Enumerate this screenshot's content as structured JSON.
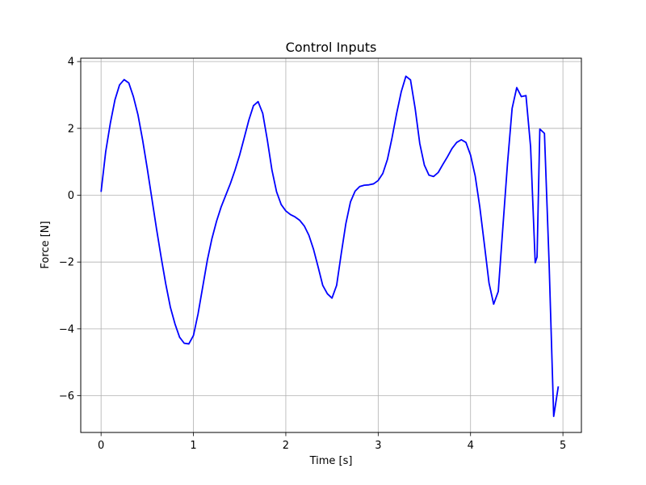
{
  "chart_data": {
    "type": "line",
    "title": "Control Inputs",
    "xlabel": "Time [s]",
    "ylabel": "Force [N]",
    "xlim": [
      -0.22,
      5.2
    ],
    "ylim": [
      -7.1,
      4.1
    ],
    "xticks": [
      0,
      1,
      2,
      3,
      4,
      5
    ],
    "xtick_labels": [
      "0",
      "1",
      "2",
      "3",
      "4",
      "5"
    ],
    "yticks": [
      -6,
      -4,
      -2,
      0,
      2,
      4
    ],
    "ytick_labels": [
      "−6",
      "−4",
      "−2",
      "0",
      "2",
      "4"
    ],
    "grid": true,
    "series": [
      {
        "color": "#0000ff",
        "x": [
          0.0,
          0.05,
          0.1,
          0.15,
          0.2,
          0.25,
          0.3,
          0.35,
          0.4,
          0.45,
          0.5,
          0.55,
          0.6,
          0.65,
          0.7,
          0.75,
          0.8,
          0.85,
          0.9,
          0.95,
          1.0,
          1.05,
          1.1,
          1.15,
          1.2,
          1.25,
          1.3,
          1.35,
          1.4,
          1.45,
          1.5,
          1.55,
          1.6,
          1.65,
          1.7,
          1.75,
          1.8,
          1.85,
          1.9,
          1.95,
          2.0,
          2.05,
          2.1,
          2.15,
          2.2,
          2.25,
          2.3,
          2.35,
          2.4,
          2.45,
          2.5,
          2.55,
          2.6,
          2.65,
          2.7,
          2.75,
          2.8,
          2.85,
          2.9,
          2.95,
          3.0,
          3.05,
          3.1,
          3.15,
          3.2,
          3.25,
          3.3,
          3.35,
          3.4,
          3.45,
          3.5,
          3.55,
          3.6,
          3.65,
          3.7,
          3.75,
          3.8,
          3.85,
          3.9,
          3.95,
          4.0,
          4.05,
          4.1,
          4.15,
          4.2,
          4.25,
          4.3,
          4.35,
          4.4,
          4.45,
          4.5,
          4.55,
          4.6,
          4.65,
          4.7,
          4.72,
          4.75,
          4.8,
          4.85,
          4.9,
          4.95
        ],
        "y": [
          0.1,
          1.3,
          2.15,
          2.85,
          3.3,
          3.46,
          3.36,
          2.95,
          2.4,
          1.65,
          0.8,
          -0.1,
          -1.0,
          -1.85,
          -2.65,
          -3.35,
          -3.85,
          -4.25,
          -4.43,
          -4.45,
          -4.2,
          -3.55,
          -2.75,
          -1.95,
          -1.3,
          -0.78,
          -0.35,
          0.0,
          0.35,
          0.75,
          1.2,
          1.72,
          2.25,
          2.68,
          2.8,
          2.45,
          1.65,
          0.75,
          0.1,
          -0.28,
          -0.47,
          -0.58,
          -0.65,
          -0.75,
          -0.92,
          -1.2,
          -1.62,
          -2.15,
          -2.7,
          -2.95,
          -3.08,
          -2.7,
          -1.75,
          -0.85,
          -0.2,
          0.12,
          0.26,
          0.3,
          0.31,
          0.34,
          0.44,
          0.65,
          1.07,
          1.72,
          2.45,
          3.1,
          3.56,
          3.45,
          2.6,
          1.55,
          0.9,
          0.6,
          0.56,
          0.68,
          0.92,
          1.15,
          1.4,
          1.58,
          1.66,
          1.58,
          1.2,
          0.58,
          -0.35,
          -1.48,
          -2.63,
          -3.26,
          -2.88,
          -0.95,
          0.95,
          2.6,
          3.22,
          2.95,
          2.98,
          1.45,
          -2.02,
          -1.85,
          1.98,
          1.85,
          -2.0,
          -6.62,
          -5.72
        ]
      }
    ]
  }
}
